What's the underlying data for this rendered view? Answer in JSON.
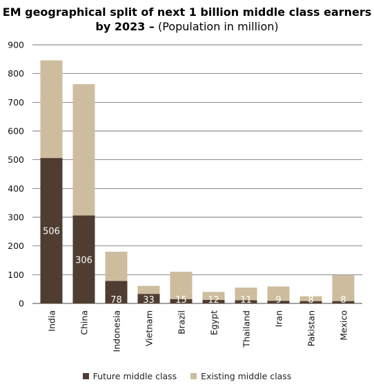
{
  "title": {
    "bold": "EM geographical split of next 1 billion middle class earners by 2023 –",
    "normal": " (Population in million)"
  },
  "colors": {
    "future": "#4f3d31",
    "existing": "#cdbd9e",
    "grid": "#444444",
    "label": "#ffffff"
  },
  "chart_data": {
    "type": "bar",
    "stacked": true,
    "title": "EM geographical split of next 1 billion middle class earners by 2023 – (Population in million)",
    "categories": [
      "India",
      "China",
      "Indonesia",
      "Vietnam",
      "Brazil",
      "Egypt",
      "Thailand",
      "Iran",
      "Pakistan",
      "Mexico"
    ],
    "series": [
      {
        "name": "Future middle class",
        "values": [
          506,
          306,
          78,
          33,
          15,
          12,
          11,
          9,
          8,
          8
        ]
      },
      {
        "name": "Existing middle class",
        "values": [
          340,
          457,
          102,
          28,
          95,
          28,
          44,
          50,
          17,
          90
        ]
      }
    ],
    "data_labels": [
      "506",
      "306",
      "78",
      "33",
      "15",
      "12",
      "11",
      "9",
      "8",
      "8"
    ],
    "ylim": [
      0,
      900
    ],
    "yticks": [
      0,
      100,
      200,
      300,
      400,
      500,
      600,
      700,
      800,
      900
    ],
    "grid": true,
    "legend_position": "bottom"
  }
}
